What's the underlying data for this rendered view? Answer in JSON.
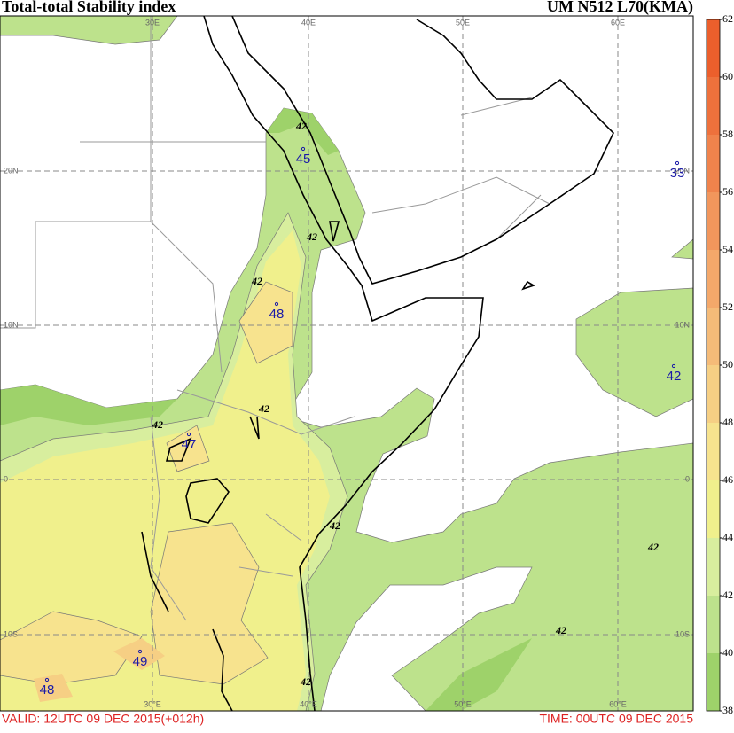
{
  "header": {
    "title": "Total-total Stability index",
    "model": "UM N512 L70(KMA)"
  },
  "colorbar": {
    "ticks": [
      38,
      40,
      42,
      44,
      46,
      48,
      50,
      52,
      54,
      56,
      58,
      60,
      62
    ],
    "colors": [
      "#9ed26a",
      "#bde28c",
      "#d8ee9e",
      "#f0f08c",
      "#f7e38e",
      "#f6cf84",
      "#f5bb78",
      "#f4a86a",
      "#f2965c",
      "#f0834c",
      "#ee713c",
      "#ec5f2c"
    ]
  },
  "grid": {
    "lon_top": [
      "30E",
      "40E",
      "50E",
      "60E"
    ],
    "lon_bottom": [
      "30°E",
      "40°E",
      "50°E",
      "60°E"
    ],
    "lat": [
      "20N",
      "10N",
      "0",
      "10S"
    ]
  },
  "points": [
    "45",
    "33",
    "48",
    "42",
    "47",
    "49",
    "48"
  ],
  "contour_labels": [
    "42",
    "42",
    "42",
    "42",
    "42",
    "42",
    "42",
    "42",
    "42"
  ],
  "footer": {
    "valid": "VALID: 12UTC 09 DEC 2015(+012h)",
    "time": "TIME: 00UTC 09 DEC 2015"
  }
}
